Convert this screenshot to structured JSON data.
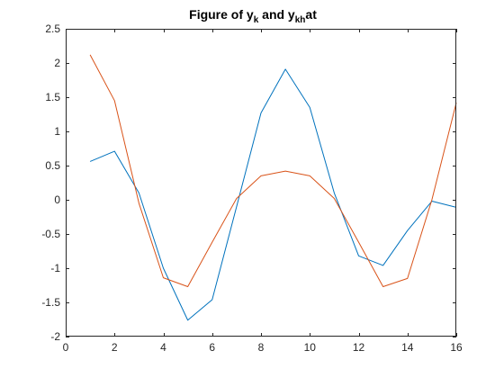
{
  "chart_data": {
    "type": "line",
    "title": {
      "part1": "Figure of y",
      "sub1": "k",
      "part2": " and y",
      "sub2": "kh",
      "part3": "at"
    },
    "xlabel": "",
    "ylabel": "",
    "xlim": [
      0,
      16
    ],
    "ylim": [
      -2,
      2.5
    ],
    "x_ticks": [
      0,
      2,
      4,
      6,
      8,
      10,
      12,
      14,
      16
    ],
    "y_ticks": [
      -2,
      -1.5,
      -1,
      -0.5,
      0,
      0.5,
      1,
      1.5,
      2,
      2.5
    ],
    "x_tick_labels": [
      "0",
      "2",
      "4",
      "6",
      "8",
      "10",
      "12",
      "14",
      "16"
    ],
    "y_tick_labels": [
      "-2",
      "-1.5",
      "-1",
      "-0.5",
      "0",
      "0.5",
      "1",
      "1.5",
      "2",
      "2.5"
    ],
    "grid": false,
    "series": [
      {
        "color": "#0072BD",
        "x": [
          1,
          2,
          3,
          4,
          5,
          6,
          7,
          8,
          9,
          10,
          11,
          12,
          13,
          14,
          15,
          16
        ],
        "y": [
          0.56,
          0.71,
          0.1,
          -1.0,
          -1.76,
          -1.46,
          -0.1,
          1.27,
          1.91,
          1.35,
          0.1,
          -0.82,
          -0.96,
          -0.45,
          -0.02,
          -0.11
        ]
      },
      {
        "color": "#D95319",
        "x": [
          1,
          2,
          3,
          4,
          5,
          6,
          7,
          8,
          9,
          10,
          11,
          12,
          13,
          14,
          15,
          16
        ],
        "y": [
          2.12,
          1.45,
          -0.05,
          -1.14,
          -1.27,
          -0.62,
          0.02,
          0.35,
          0.42,
          0.35,
          0.02,
          -0.62,
          -1.27,
          -1.15,
          0.0,
          1.42
        ]
      }
    ]
  }
}
